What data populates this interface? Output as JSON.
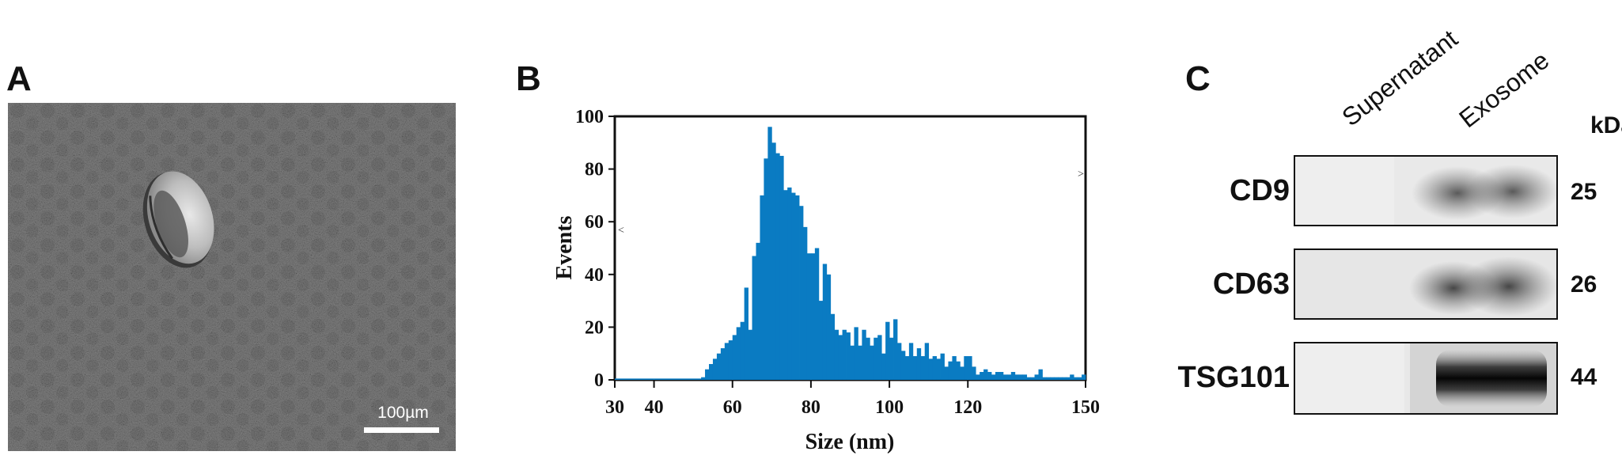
{
  "panels": {
    "a": {
      "letter": "A",
      "scale_bar_label": "100µm"
    },
    "b": {
      "letter": "B"
    },
    "c": {
      "letter": "C"
    }
  },
  "chart_data": {
    "type": "bar",
    "xlabel": "Size (nm)",
    "ylabel": "Events",
    "xlim": [
      30,
      150
    ],
    "ylim": [
      0,
      100
    ],
    "xticks": [
      30,
      40,
      60,
      80,
      100,
      120,
      150
    ],
    "yticks": [
      0,
      20,
      40,
      60,
      80,
      100
    ],
    "bar_color": "#0a7bc2",
    "bin_width_nm": 1,
    "x": [
      53,
      54,
      55,
      56,
      57,
      58,
      59,
      60,
      61,
      62,
      63,
      64,
      65,
      66,
      67,
      68,
      69,
      70,
      71,
      72,
      73,
      74,
      75,
      76,
      77,
      78,
      79,
      80,
      81,
      82,
      83,
      84,
      85,
      86,
      87,
      88,
      89,
      90,
      91,
      92,
      93,
      94,
      95,
      96,
      97,
      98,
      99,
      100,
      101,
      102,
      103,
      104,
      105,
      106,
      107,
      108,
      109,
      110,
      111,
      112,
      113,
      114,
      115,
      116,
      117,
      118,
      119,
      120,
      121,
      122,
      123,
      124,
      125,
      126,
      127,
      128,
      129,
      130,
      131,
      132,
      133,
      134,
      135,
      136,
      137,
      138,
      139,
      140,
      141,
      142,
      143,
      144,
      145,
      146,
      147,
      148,
      149,
      150
    ],
    "values": [
      1,
      4,
      6,
      8,
      10,
      12,
      14,
      15,
      17,
      20,
      22,
      35,
      19,
      47,
      52,
      70,
      84,
      96,
      90,
      86,
      85,
      72,
      73,
      71,
      70,
      66,
      58,
      48,
      48,
      50,
      30,
      44,
      40,
      25,
      19,
      17,
      19,
      18,
      13,
      20,
      13,
      19,
      16,
      13,
      16,
      17,
      10,
      22,
      16,
      23,
      14,
      11,
      9,
      14,
      9,
      12,
      9,
      14,
      8,
      9,
      8,
      10,
      5,
      7,
      9,
      7,
      5,
      9,
      9,
      5,
      2,
      3,
      4,
      3,
      2,
      3,
      3,
      2,
      2,
      3,
      2,
      2,
      2,
      1,
      1,
      2,
      4,
      1,
      1,
      1,
      1,
      1,
      1,
      1,
      2,
      1,
      1,
      2
    ],
    "baseline_value": 0.5
  },
  "blot": {
    "lanes": [
      "Supernatant",
      "Exosome"
    ],
    "unit": "kDa",
    "rows": [
      {
        "protein": "CD9",
        "kda": "25"
      },
      {
        "protein": "CD63",
        "kda": "26"
      },
      {
        "protein": "TSG101",
        "kda": "44"
      }
    ]
  }
}
